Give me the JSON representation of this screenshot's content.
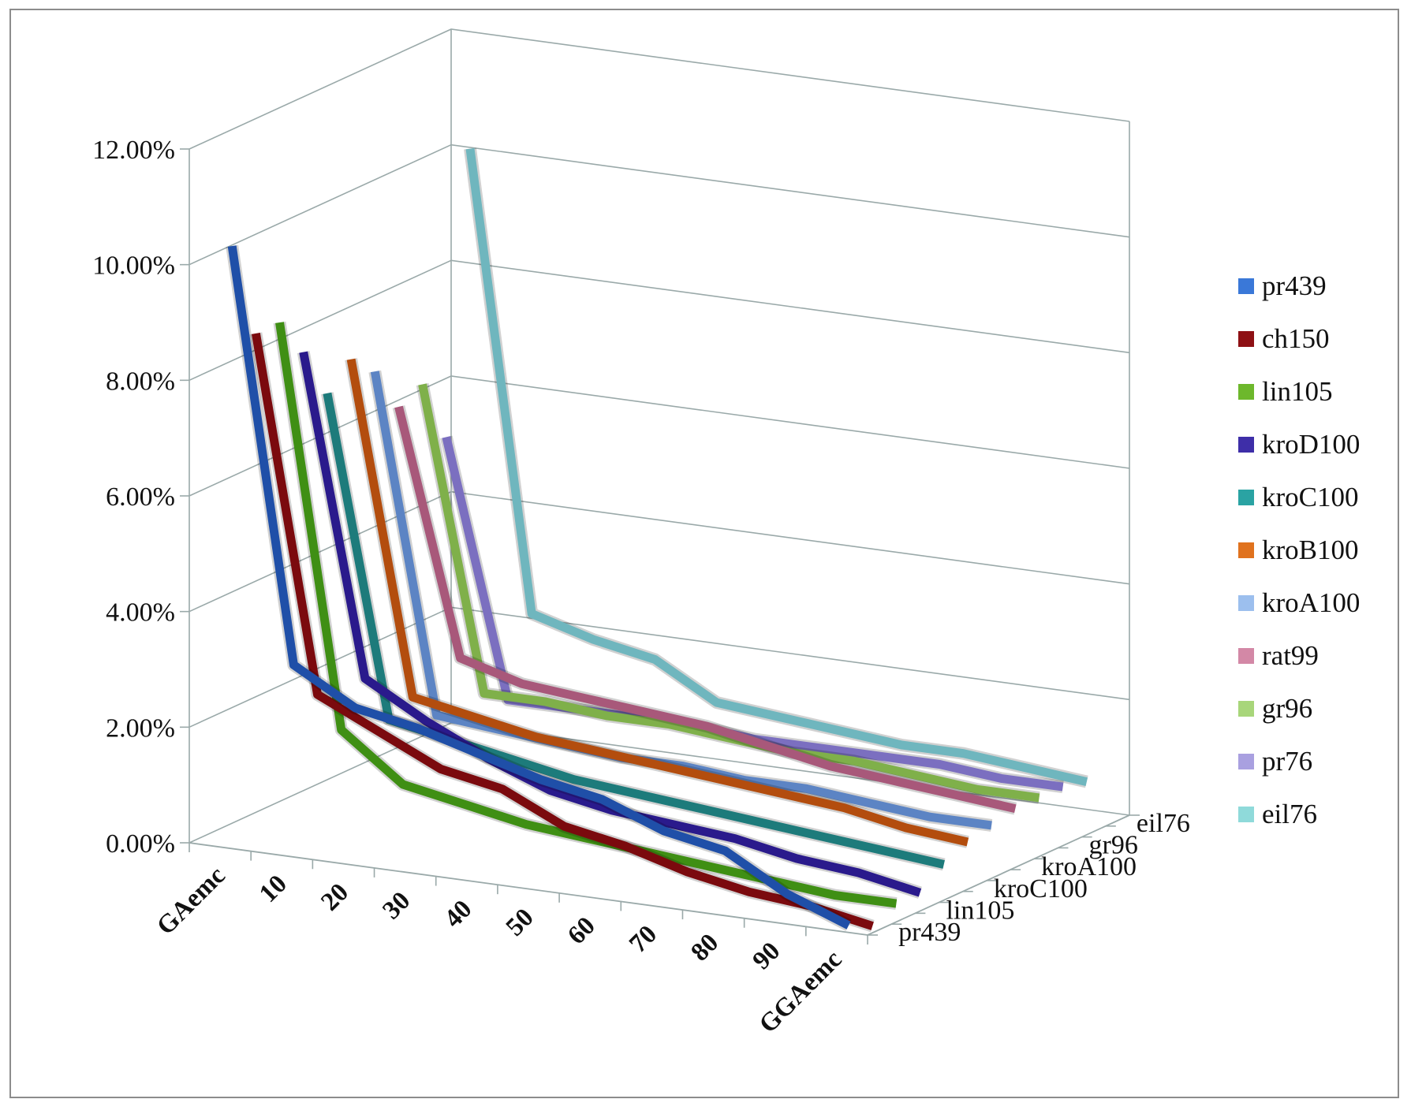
{
  "chart_data": {
    "type": "line",
    "projection": "3d",
    "x": [
      "GAemc",
      "10",
      "20",
      "30",
      "40",
      "50",
      "60",
      "70",
      "80",
      "90",
      "GGAemc"
    ],
    "y_ticks": [
      "0.00%",
      "2.00%",
      "4.00%",
      "6.00%",
      "8.00%",
      "10.00%",
      "12.00%"
    ],
    "ylim": [
      0,
      12
    ],
    "y_unit": "%",
    "depth_ticks": [
      "pr439",
      "lin105",
      "kroC100",
      "kroA100",
      "gr96",
      "eil76"
    ],
    "grid": true,
    "legend_position": "right",
    "series": [
      {
        "name": "pr439",
        "color": "#1f4fa8",
        "values": [
          10.3,
          3.2,
          2.6,
          2.4,
          2.1,
          1.8,
          1.6,
          1.2,
          1.0,
          0.4,
          0.0
        ]
      },
      {
        "name": "ch150",
        "color": "#7b0a0e",
        "values": [
          8.6,
          2.5,
          2.0,
          1.5,
          1.3,
          0.8,
          0.6,
          0.3,
          0.1,
          0.0,
          -0.2
        ]
      },
      {
        "name": "lin105",
        "color": "#3f8f14",
        "values": [
          8.6,
          1.7,
          0.9,
          0.7,
          0.5,
          0.4,
          0.3,
          0.2,
          0.1,
          0.0,
          0.0
        ]
      },
      {
        "name": "kroD100",
        "color": "#2a1a8c",
        "values": [
          7.9,
          2.4,
          1.8,
          1.3,
          0.9,
          0.7,
          0.6,
          0.5,
          0.3,
          0.2,
          0.0
        ]
      },
      {
        "name": "kroC100",
        "color": "#1d7b7b",
        "values": [
          7.0,
          1.5,
          1.3,
          1.1,
          0.9,
          0.8,
          0.7,
          0.6,
          0.5,
          0.4,
          0.3
        ]
      },
      {
        "name": "kroB100",
        "color": "#b34d0e",
        "values": [
          7.4,
          1.7,
          1.5,
          1.3,
          1.2,
          1.1,
          1.0,
          0.9,
          0.8,
          0.6,
          0.5
        ]
      },
      {
        "name": "kroA100",
        "color": "#5c84c4",
        "values": [
          7.0,
          1.2,
          1.1,
          1.0,
          0.9,
          0.9,
          0.8,
          0.8,
          0.7,
          0.6,
          0.6
        ]
      },
      {
        "name": "rat99",
        "color": "#a8587a",
        "values": [
          6.2,
          2.0,
          1.7,
          1.6,
          1.5,
          1.4,
          1.2,
          1.0,
          0.9,
          0.8,
          0.7
        ]
      },
      {
        "name": "gr96",
        "color": "#7fb04a",
        "values": [
          6.4,
          1.2,
          1.2,
          1.1,
          1.1,
          1.0,
          0.9,
          0.9,
          0.8,
          0.7,
          0.7
        ]
      },
      {
        "name": "pr76",
        "color": "#7b6fc0",
        "values": [
          5.3,
          0.9,
          0.9,
          0.9,
          0.9,
          0.8,
          0.8,
          0.8,
          0.8,
          0.7,
          0.7
        ]
      },
      {
        "name": "eil76",
        "color": "#6fb6be",
        "values": [
          10.1,
          2.2,
          1.9,
          1.7,
          1.1,
          1.0,
          0.9,
          0.8,
          0.8,
          0.7,
          0.6
        ]
      }
    ]
  },
  "legend_colors": {
    "pr439": "#3a78d8",
    "ch150": "#8e1014",
    "lin105": "#6db82c",
    "kroD100": "#3e2ea8",
    "kroC100": "#2aa3a3",
    "kroB100": "#e0721e",
    "kroA100": "#9cbfee",
    "rat99": "#d388a6",
    "gr96": "#a8d67a",
    "pr76": "#a9a0e0",
    "eil76": "#8fdada"
  }
}
